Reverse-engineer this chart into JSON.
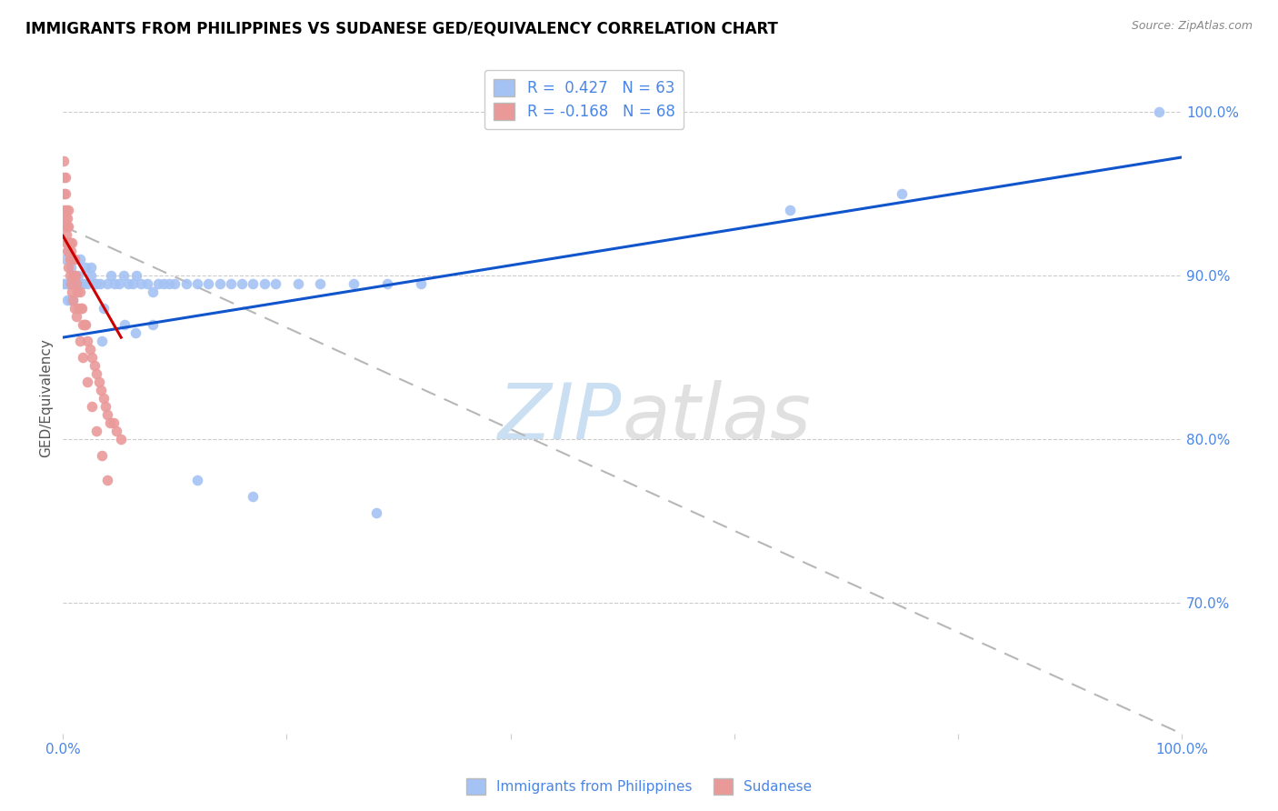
{
  "title": "IMMIGRANTS FROM PHILIPPINES VS SUDANESE GED/EQUIVALENCY CORRELATION CHART",
  "source": "Source: ZipAtlas.com",
  "ylabel": "GED/Equivalency",
  "right_yticks": [
    "100.0%",
    "90.0%",
    "80.0%",
    "70.0%"
  ],
  "right_ytick_vals": [
    1.0,
    0.9,
    0.8,
    0.7
  ],
  "r1": 0.427,
  "n1": 63,
  "r2": -0.168,
  "n2": 68,
  "blue_color": "#a4c2f4",
  "pink_color": "#ea9999",
  "blue_line_color": "#1155cc",
  "pink_line_color": "#cc0000",
  "dashed_line_color": "#b7b7b7",
  "watermark_zip_color": "#9fc5e8",
  "watermark_atlas_color": "#999999",
  "title_color": "#000000",
  "axis_color": "#4a86e8",
  "legend_label1": "Immigrants from Philippines",
  "legend_label2": "Sudanese",
  "philippines_x": [
    0.001,
    0.002,
    0.003,
    0.004,
    0.005,
    0.006,
    0.007,
    0.008,
    0.009,
    0.01,
    0.012,
    0.014,
    0.016,
    0.018,
    0.02,
    0.022,
    0.025,
    0.028,
    0.03,
    0.033,
    0.036,
    0.04,
    0.043,
    0.046,
    0.05,
    0.054,
    0.058,
    0.062,
    0.066,
    0.07,
    0.075,
    0.08,
    0.085,
    0.09,
    0.095,
    0.1,
    0.11,
    0.12,
    0.13,
    0.14,
    0.15,
    0.16,
    0.17,
    0.18,
    0.19,
    0.21,
    0.23,
    0.26,
    0.29,
    0.32,
    0.005,
    0.015,
    0.025,
    0.035,
    0.055,
    0.065,
    0.08,
    0.12,
    0.17,
    0.28,
    0.65,
    0.75,
    0.98
  ],
  "philippines_y": [
    0.895,
    0.91,
    0.895,
    0.885,
    0.895,
    0.885,
    0.905,
    0.895,
    0.885,
    0.895,
    0.895,
    0.9,
    0.895,
    0.895,
    0.905,
    0.895,
    0.9,
    0.895,
    0.895,
    0.895,
    0.88,
    0.895,
    0.9,
    0.895,
    0.895,
    0.9,
    0.895,
    0.895,
    0.9,
    0.895,
    0.895,
    0.89,
    0.895,
    0.895,
    0.895,
    0.895,
    0.895,
    0.895,
    0.895,
    0.895,
    0.895,
    0.895,
    0.895,
    0.895,
    0.895,
    0.895,
    0.895,
    0.895,
    0.895,
    0.895,
    0.915,
    0.91,
    0.905,
    0.86,
    0.87,
    0.865,
    0.87,
    0.775,
    0.765,
    0.755,
    0.94,
    0.95,
    1.0
  ],
  "sudanese_x": [
    0.001,
    0.001,
    0.001,
    0.002,
    0.002,
    0.002,
    0.003,
    0.003,
    0.003,
    0.004,
    0.004,
    0.004,
    0.005,
    0.005,
    0.005,
    0.006,
    0.006,
    0.006,
    0.007,
    0.007,
    0.008,
    0.008,
    0.009,
    0.009,
    0.01,
    0.01,
    0.011,
    0.012,
    0.013,
    0.014,
    0.015,
    0.016,
    0.017,
    0.018,
    0.019,
    0.02,
    0.022,
    0.024,
    0.026,
    0.028,
    0.03,
    0.032,
    0.034,
    0.036,
    0.038,
    0.04,
    0.042,
    0.045,
    0.048,
    0.052,
    0.001,
    0.002,
    0.003,
    0.004,
    0.005,
    0.006,
    0.007,
    0.008,
    0.009,
    0.01,
    0.012,
    0.015,
    0.018,
    0.022,
    0.026,
    0.03,
    0.035,
    0.04
  ],
  "sudanese_y": [
    0.97,
    0.96,
    0.94,
    0.96,
    0.95,
    0.93,
    0.94,
    0.93,
    0.92,
    0.935,
    0.92,
    0.93,
    0.94,
    0.93,
    0.92,
    0.92,
    0.91,
    0.92,
    0.915,
    0.91,
    0.91,
    0.92,
    0.91,
    0.9,
    0.91,
    0.9,
    0.9,
    0.895,
    0.89,
    0.88,
    0.89,
    0.88,
    0.88,
    0.87,
    0.87,
    0.87,
    0.86,
    0.855,
    0.85,
    0.845,
    0.84,
    0.835,
    0.83,
    0.825,
    0.82,
    0.815,
    0.81,
    0.81,
    0.805,
    0.8,
    0.95,
    0.935,
    0.925,
    0.915,
    0.905,
    0.9,
    0.895,
    0.89,
    0.885,
    0.88,
    0.875,
    0.86,
    0.85,
    0.835,
    0.82,
    0.805,
    0.79,
    0.775
  ],
  "blue_line_x": [
    0.0,
    1.0
  ],
  "blue_line_y": [
    0.862,
    0.972
  ],
  "pink_line_x": [
    0.0,
    0.052
  ],
  "pink_line_y": [
    0.924,
    0.862
  ],
  "dash_line_x": [
    0.0,
    1.0
  ],
  "dash_line_y": [
    0.93,
    0.62
  ],
  "xlim": [
    0.0,
    1.0
  ],
  "ylim": [
    0.62,
    1.03
  ]
}
